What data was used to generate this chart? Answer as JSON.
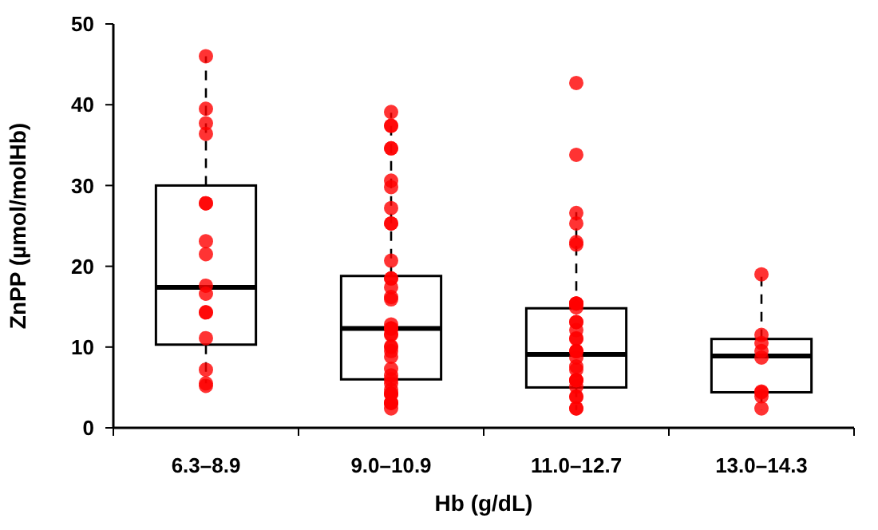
{
  "chart_data": {
    "type": "box",
    "xlabel": "Hb (g/dL)",
    "ylabel": "ZnPP (µmol/molHb)",
    "categories": [
      "6.3–8.9",
      "9.0–10.9",
      "11.0–12.7",
      "13.0–14.3"
    ],
    "boxes": [
      {
        "low": 5.5,
        "q1": 10.3,
        "median": 17.4,
        "q3": 30,
        "high": 46
      },
      {
        "low": 2.2,
        "q1": 6,
        "median": 12.3,
        "q3": 18.8,
        "high": 39
      },
      {
        "low": 2.2,
        "q1": 5,
        "median": 9.1,
        "q3": 14.8,
        "high": 26.7
      },
      {
        "low": 2.2,
        "q1": 4.4,
        "median": 8.9,
        "q3": 11,
        "high": 19
      }
    ],
    "series": [
      {
        "type": "scatter",
        "color": "#ff0000",
        "x": [
          "6.3–8.9",
          "6.3–8.9",
          "6.3–8.9",
          "6.3–8.9",
          "6.3–8.9",
          "6.3–8.9",
          "6.3–8.9",
          "6.3–8.9",
          "6.3–8.9",
          "6.3–8.9",
          "6.3–8.9",
          "6.3–8.9",
          "6.3–8.9",
          "6.3–8.9",
          "6.3–8.9",
          "6.3–8.9",
          "9.0–10.9",
          "9.0–10.9",
          "9.0–10.9",
          "9.0–10.9",
          "9.0–10.9",
          "9.0–10.9",
          "9.0–10.9",
          "9.0–10.9",
          "9.0–10.9",
          "9.0–10.9",
          "9.0–10.9",
          "9.0–10.9",
          "9.0–10.9",
          "9.0–10.9",
          "9.0–10.9",
          "9.0–10.9",
          "9.0–10.9",
          "9.0–10.9",
          "9.0–10.9",
          "9.0–10.9",
          "9.0–10.9",
          "9.0–10.9",
          "9.0–10.9",
          "9.0–10.9",
          "9.0–10.9",
          "9.0–10.9",
          "9.0–10.9",
          "9.0–10.9",
          "9.0–10.9",
          "9.0–10.9",
          "9.0–10.9",
          "9.0–10.9",
          "9.0–10.9",
          "9.0–10.9",
          "9.0–10.9",
          "9.0–10.9",
          "9.0–10.9",
          "9.0–10.9",
          "11.0–12.7",
          "11.0–12.7",
          "11.0–12.7",
          "11.0–12.7",
          "11.0–12.7",
          "11.0–12.7",
          "11.0–12.7",
          "11.0–12.7",
          "11.0–12.7",
          "11.0–12.7",
          "11.0–12.7",
          "11.0–12.7",
          "11.0–12.7",
          "11.0–12.7",
          "11.0–12.7",
          "11.0–12.7",
          "11.0–12.7",
          "11.0–12.7",
          "11.0–12.7",
          "11.0–12.7",
          "11.0–12.7",
          "11.0–12.7",
          "11.0–12.7",
          "11.0–12.7",
          "11.0–12.7",
          "11.0–12.7",
          "11.0–12.7",
          "11.0–12.7",
          "11.0–12.7",
          "13.0–14.3",
          "13.0–14.3",
          "13.0–14.3",
          "13.0–14.3",
          "13.0–14.3",
          "13.0–14.3",
          "13.0–14.3",
          "13.0–14.3",
          "13.0–14.3"
        ],
        "values": [
          46,
          39.5,
          37.7,
          36.4,
          27.8,
          27.8,
          23.1,
          21.5,
          17.6,
          16.6,
          14.3,
          14.3,
          11.1,
          7.2,
          5.5,
          5.2,
          39.1,
          37.4,
          37.4,
          34.6,
          34.6,
          30.6,
          29.8,
          27.2,
          25.3,
          25.3,
          20.7,
          18.5,
          18.5,
          17.4,
          16.2,
          15.9,
          12.8,
          12.3,
          12.3,
          12.3,
          11.5,
          11.6,
          10.1,
          10,
          9.5,
          8.8,
          7.3,
          6.5,
          6,
          5.5,
          4.7,
          4.2,
          4.2,
          4.2,
          3.1,
          3.1,
          3.1,
          2.4,
          42.7,
          33.8,
          26.6,
          25.3,
          22.7,
          23,
          15.4,
          15.4,
          15.4,
          14.9,
          13.1,
          13.1,
          12.1,
          11.1,
          11,
          9.5,
          9.5,
          9.5,
          8.7,
          7.6,
          7.2,
          5.9,
          5.9,
          5.9,
          5.1,
          3.9,
          3.8,
          2.4,
          2.4,
          19,
          11.5,
          10.5,
          9.5,
          8.7,
          4.5,
          4.4,
          3.9,
          2.4
        ]
      }
    ],
    "ylim": [
      0,
      50
    ],
    "yticks": [
      0,
      10,
      20,
      30,
      40,
      50
    ],
    "marker": "circle"
  }
}
